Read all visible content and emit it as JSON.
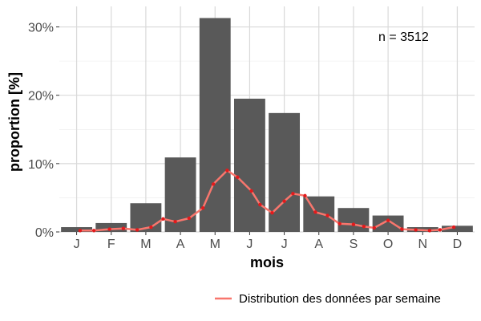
{
  "chart_data": {
    "type": "bar",
    "title": "",
    "xlabel": "mois",
    "ylabel": "proportion [%]",
    "categories": [
      "J",
      "F",
      "M",
      "A",
      "M",
      "J",
      "J",
      "A",
      "S",
      "O",
      "N",
      "D"
    ],
    "values": [
      0.7,
      1.3,
      4.2,
      10.9,
      31.3,
      19.5,
      17.4,
      5.2,
      3.5,
      2.4,
      0.7,
      0.9
    ],
    "ylim": [
      0,
      33
    ],
    "yticks": [
      0,
      10,
      20,
      30
    ],
    "ytick_labels": [
      "0%",
      "10%",
      "20%",
      "30%"
    ],
    "grid": true,
    "annotation": "n = 3512",
    "bar_color": "#595959",
    "line_series": {
      "name": "Distribution des données par semaine",
      "color": "#f8766d",
      "marker_color": "#e31a1c",
      "x": [
        0.6,
        1.0,
        1.45,
        1.85,
        2.25,
        2.65,
        3.0,
        3.35,
        3.75,
        4.15,
        4.45,
        4.85,
        5.15,
        5.55,
        5.8,
        6.15,
        6.5,
        6.75,
        7.1,
        7.4,
        7.75,
        8.1,
        8.5,
        8.8,
        9.1,
        9.5,
        9.9,
        10.3,
        10.7,
        11.0,
        11.4
      ],
      "y": [
        0.2,
        0.2,
        0.4,
        0.5,
        0.3,
        0.7,
        1.9,
        1.5,
        2.0,
        3.5,
        7.0,
        9.0,
        8.0,
        6.0,
        4.0,
        2.8,
        4.5,
        5.6,
        5.3,
        2.9,
        2.4,
        1.2,
        1.1,
        0.8,
        0.6,
        1.7,
        0.4,
        0.3,
        0.2,
        0.3,
        0.7
      ]
    },
    "legend_position": "bottom-right"
  }
}
